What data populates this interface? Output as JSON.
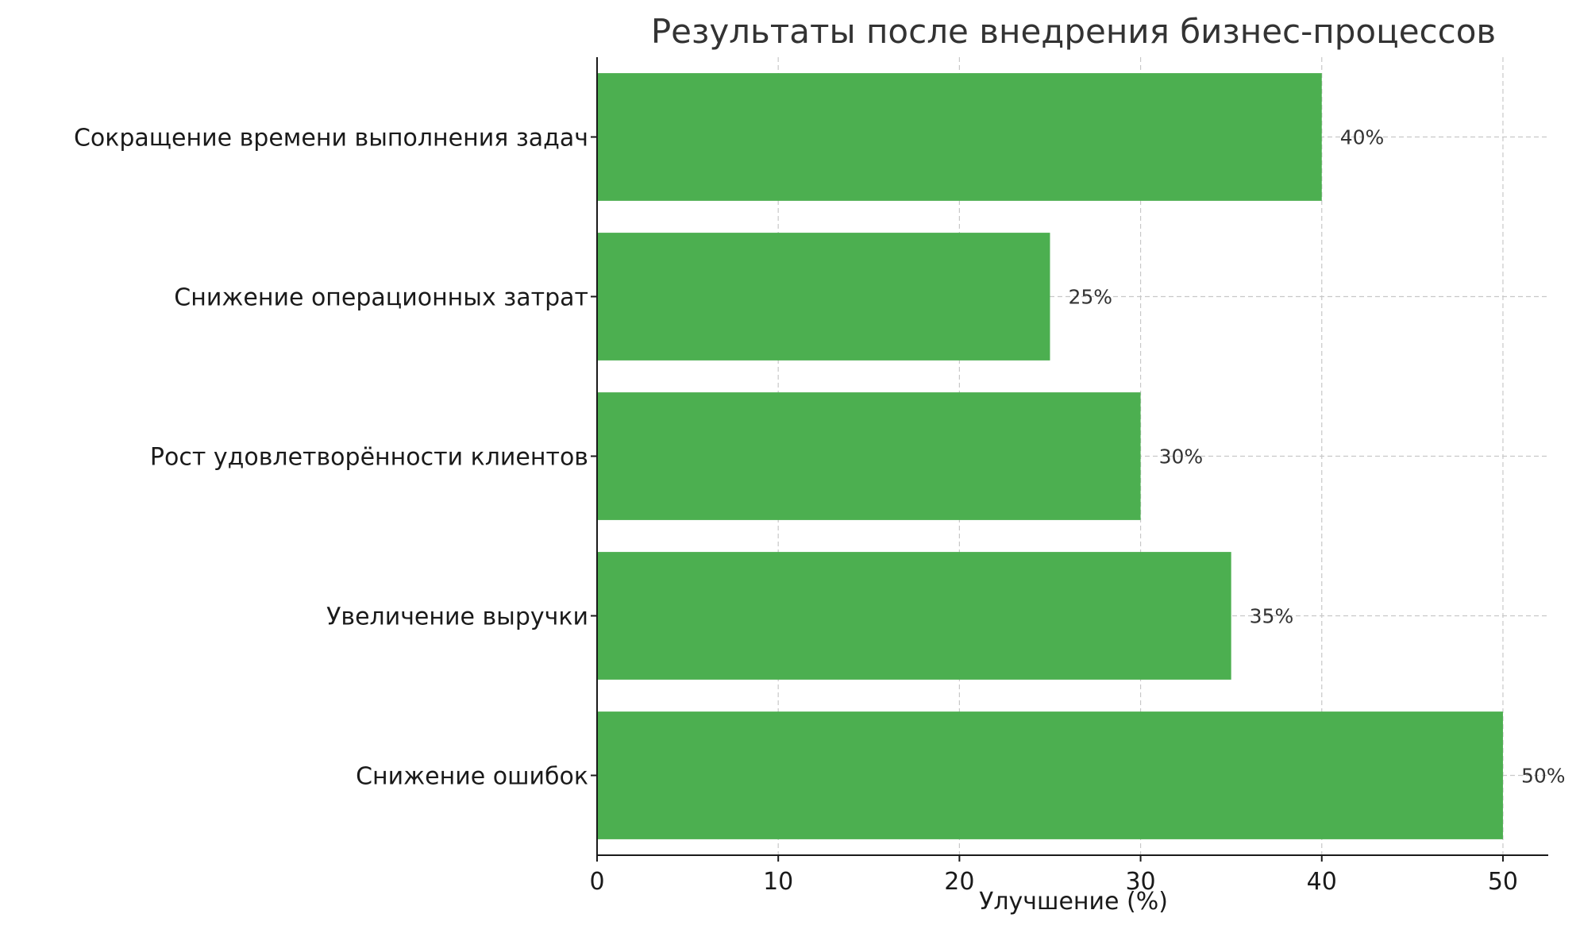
{
  "chart_data": {
    "type": "bar",
    "orientation": "horizontal",
    "title": "Результаты после внедрения бизнес-процессов",
    "xlabel": "Улучшение (%)",
    "ylabel": "",
    "categories": [
      "Сокращение времени выполнения задач",
      "Снижение операционных затрат",
      "Рост удовлетворённости клиентов",
      "Увеличение выручки",
      "Снижение ошибок"
    ],
    "values": [
      40,
      25,
      30,
      35,
      50
    ],
    "data_labels": [
      "40%",
      "25%",
      "30%",
      "35%",
      "50%"
    ],
    "xlim": [
      0,
      52.5
    ],
    "xticks": [
      "0",
      "10",
      "20",
      "30",
      "40",
      "50"
    ],
    "grid": true,
    "bar_color": "#4caf50"
  }
}
